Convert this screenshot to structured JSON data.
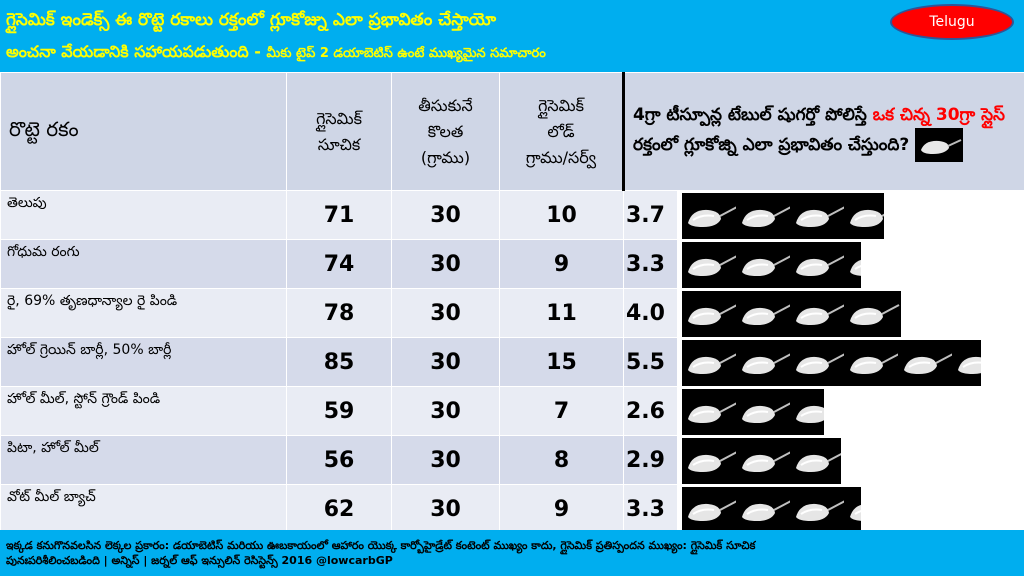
{
  "header": {
    "title_line1": "గ్లైసెమిక్ ఇండెక్స్ ఈ రొట్టె రకాలు రక్తంలో గ్లూకోజ్ను ఎలా ప్రభావితం చేస్తాయో",
    "title_line2_main": "అంచనా వేయడానికి సహాయపడుతుంది - ",
    "title_line2_sub": "మీకు టైప్ 2 డయాబెటిస్ ఉంటే ముఖ్యమైన సమాచారం",
    "language_badge": "Telugu"
  },
  "table": {
    "headers": {
      "name": "రొట్టె రకం",
      "gi": [
        "గ్లైసెమిక్",
        "సూచిక"
      ],
      "portion": [
        "తీసుకునే",
        "కొలత",
        "(గ్రాము)"
      ],
      "gl": [
        "గ్లైసెమిక్",
        "లోడ్",
        "గ్రాము/సర్వ్"
      ],
      "compare_prefix": "4గ్రా టీస్పూన్ల టేబుల్ షుగర్తో పోలిస్తే ",
      "compare_red": "ఒక చిన్న 30గ్రా స్లైస్",
      "compare_suffix": " రక్తంలో గ్లూకోజ్ని ఎలా ప్రభావితం చేస్తుంది?"
    },
    "rows": [
      {
        "name": "తెలుపు",
        "gi": "71",
        "portion": "30",
        "gl": "10",
        "teaspoons": "3.7"
      },
      {
        "name": "గోధుమ రంగు",
        "gi": "74",
        "portion": "30",
        "gl": "9",
        "teaspoons": "3.3"
      },
      {
        "name": "రై, 69% తృణధాన్యాల రై పిండి",
        "gi": "78",
        "portion": "30",
        "gl": "11",
        "teaspoons": "4.0"
      },
      {
        "name": "హోల్ గ్రెయిన్ బార్లీ, 50% బార్లీ",
        "gi": "85",
        "portion": "30",
        "gl": "15",
        "teaspoons": "5.5"
      },
      {
        "name": "హోల్ మీల్, స్టోన్ గ్రౌండ్ పిండి",
        "gi": "59",
        "portion": "30",
        "gl": "7",
        "teaspoons": "2.6"
      },
      {
        "name": "పిటా, హోల్ మీల్",
        "gi": "56",
        "portion": "30",
        "gl": "8",
        "teaspoons": "2.9"
      },
      {
        "name": "వోట్ మీల్ బ్యాచ్",
        "gi": "62",
        "portion": "30",
        "gl": "9",
        "teaspoons": "3.3"
      }
    ]
  },
  "footer": {
    "line1": "ఇక్కడ కనుగొనవలసిన లెక్కల ప్రకారం: డయాబెటిస్ మరియు ఊబకాయంలో ఆహారం యొక్క కార్బోహైడ్రేట్ కంటెంట్ ముఖ్యం కాదు, గ్లైసెమిక్ ప్రతిస్పందన ముఖ్యం: గ్లైసెమిక్ సూచిక",
    "line2": "పునఃపరిశీలించబడింది | అన్నిస్ | జర్నల్ ఆఫ్ ఇన్సులిన్ రెసిస్టెన్స్ 2016 @lowcarbGP"
  },
  "colors": {
    "banner": "#00aeef",
    "title_text": "#ffff00",
    "badge": "#ff0000",
    "header_row": "#cfd6e6",
    "row_light": "#e9ecf4",
    "row_dark": "#d5daea",
    "highlight": "#ff0000"
  },
  "icons": {
    "spoon": "teaspoon-of-sugar-icon"
  }
}
